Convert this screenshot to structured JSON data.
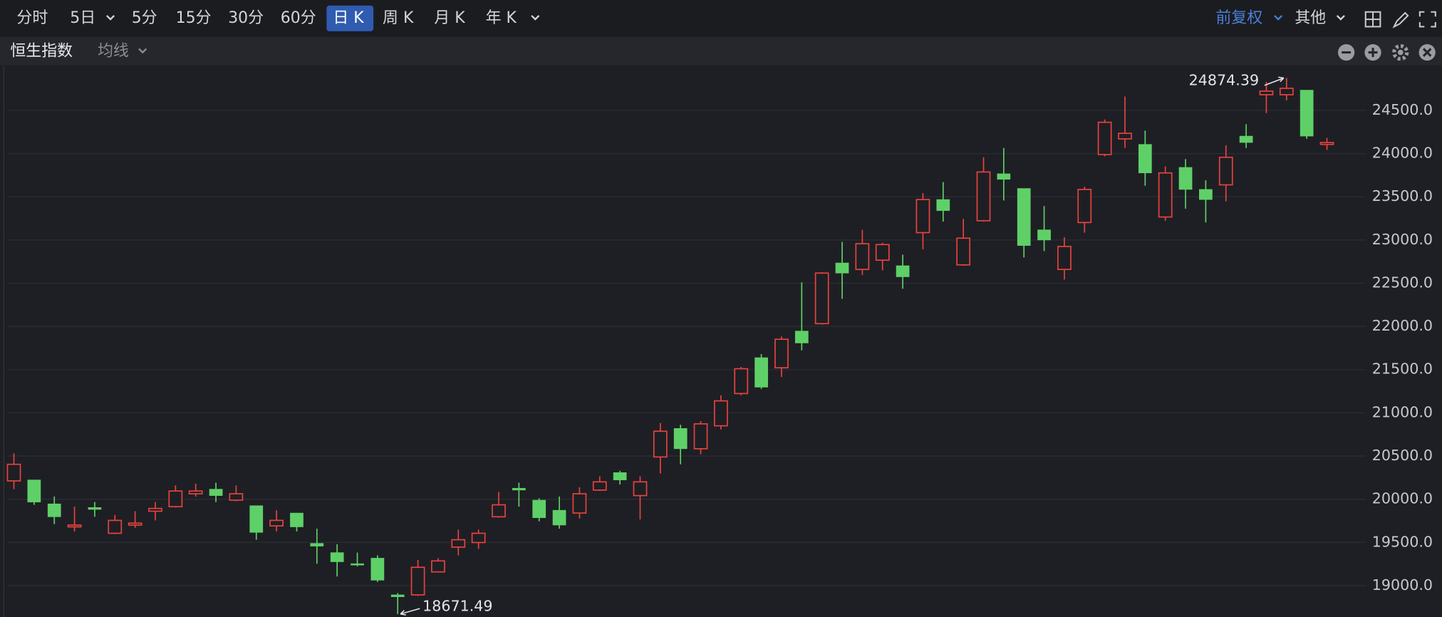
{
  "toolbar": {
    "periods": [
      "分时",
      "5日",
      "5分",
      "15分",
      "30分",
      "60分",
      "日 K",
      "周 K",
      "月 K",
      "年 K"
    ],
    "adjust": "前复权",
    "other": "其他"
  },
  "subbar": {
    "name": "恒生指数",
    "ma": "均线"
  },
  "chart_data": {
    "type": "candlestick",
    "up_color": "#e8433f",
    "down_color": "#5fd068",
    "ylim": [
      18637,
      25011
    ],
    "yticks": [
      {
        "value": 19000,
        "label": "19000.0"
      },
      {
        "value": 19500,
        "label": "19500.0"
      },
      {
        "value": 20000,
        "label": "20000.0"
      },
      {
        "value": 20500,
        "label": "20500.0"
      },
      {
        "value": 21000,
        "label": "21000.0"
      },
      {
        "value": 21500,
        "label": "21500.0"
      },
      {
        "value": 22000,
        "label": "22000.0"
      },
      {
        "value": 22500,
        "label": "22500.0"
      },
      {
        "value": 23000,
        "label": "23000.0"
      },
      {
        "value": 23500,
        "label": "23500.0"
      },
      {
        "value": 24000,
        "label": "24000.0"
      },
      {
        "value": 24500,
        "label": "24500.0"
      }
    ],
    "grid": true,
    "open": [
      20212,
      20223,
      19946,
      19680,
      19904,
      19606,
      19701,
      19861,
      19914,
      20063,
      20116,
      19989,
      19925,
      19691,
      19840,
      19489,
      19382,
      19254,
      19318,
      18893,
      18893,
      19159,
      19446,
      19499,
      19797,
      20127,
      19989,
      19872,
      19840,
      20106,
      20308,
      20042,
      20489,
      20819,
      20584,
      20850,
      21223,
      21638,
      21521,
      21946,
      22032,
      22734,
      22659,
      22766,
      22702,
      23085,
      23468,
      22712,
      23223,
      23766,
      23596,
      23117,
      22659,
      23202,
      23989,
      24170,
      24106,
      23266,
      23840,
      23585,
      23638,
      24202,
      24681,
      24681,
      24734,
      24106
    ],
    "high": [
      20531,
      20223,
      20031,
      19914,
      19967,
      19818,
      19861,
      19967,
      20159,
      20180,
      20191,
      20159,
      19925,
      19872,
      19840,
      19659,
      19478,
      19382,
      19350,
      18914,
      19297,
      19318,
      19648,
      19648,
      20084,
      20191,
      20010,
      20031,
      20138,
      20265,
      20329,
      20265,
      20882,
      20861,
      20904,
      21202,
      21531,
      21680,
      21883,
      22510,
      22627,
      22978,
      23117,
      22968,
      22830,
      23542,
      23670,
      23244,
      23957,
      24064,
      23596,
      23393,
      23032,
      23617,
      24394,
      24660,
      24266,
      23851,
      23936,
      23691,
      24096,
      24340,
      24830,
      24874.39,
      24734,
      24181
    ],
    "low": [
      20116,
      19935,
      19712,
      19627,
      19797,
      19595,
      19669,
      19755,
      19904,
      20031,
      19967,
      19978,
      19531,
      19627,
      19627,
      19254,
      19106,
      19223,
      19042,
      18671.49,
      18882,
      19159,
      19350,
      19425,
      19786,
      19914,
      19744,
      19659,
      19776,
      20095,
      20170,
      19765,
      20297,
      20404,
      20521,
      20808,
      21202,
      21276,
      21414,
      21723,
      22021,
      22319,
      22595,
      22649,
      22436,
      22893,
      23213,
      22702,
      23213,
      23457,
      22798,
      22872,
      22542,
      23085,
      23968,
      24064,
      23628,
      23223,
      23362,
      23202,
      23447,
      24064,
      24468,
      24617,
      24170,
      24042
    ],
    "close": [
      20404,
      19967,
      19797,
      19701,
      19882,
      19755,
      19723,
      19893,
      20095,
      20095,
      20042,
      20063,
      19616,
      19755,
      19680,
      19457,
      19276,
      19244,
      19063,
      18871,
      19212,
      19286,
      19531,
      19606,
      19935,
      20106,
      19786,
      19701,
      20063,
      20201,
      20223,
      20201,
      20787,
      20584,
      20872,
      21138,
      21510,
      21297,
      21851,
      21808,
      22617,
      22617,
      22957,
      22947,
      22574,
      23468,
      23340,
      23021,
      23787,
      23702,
      22936,
      23000,
      22925,
      23585,
      24362,
      24234,
      23776,
      23776,
      23585,
      23468,
      23957,
      24128,
      24723,
      24755,
      24202,
      24128
    ]
  }
}
